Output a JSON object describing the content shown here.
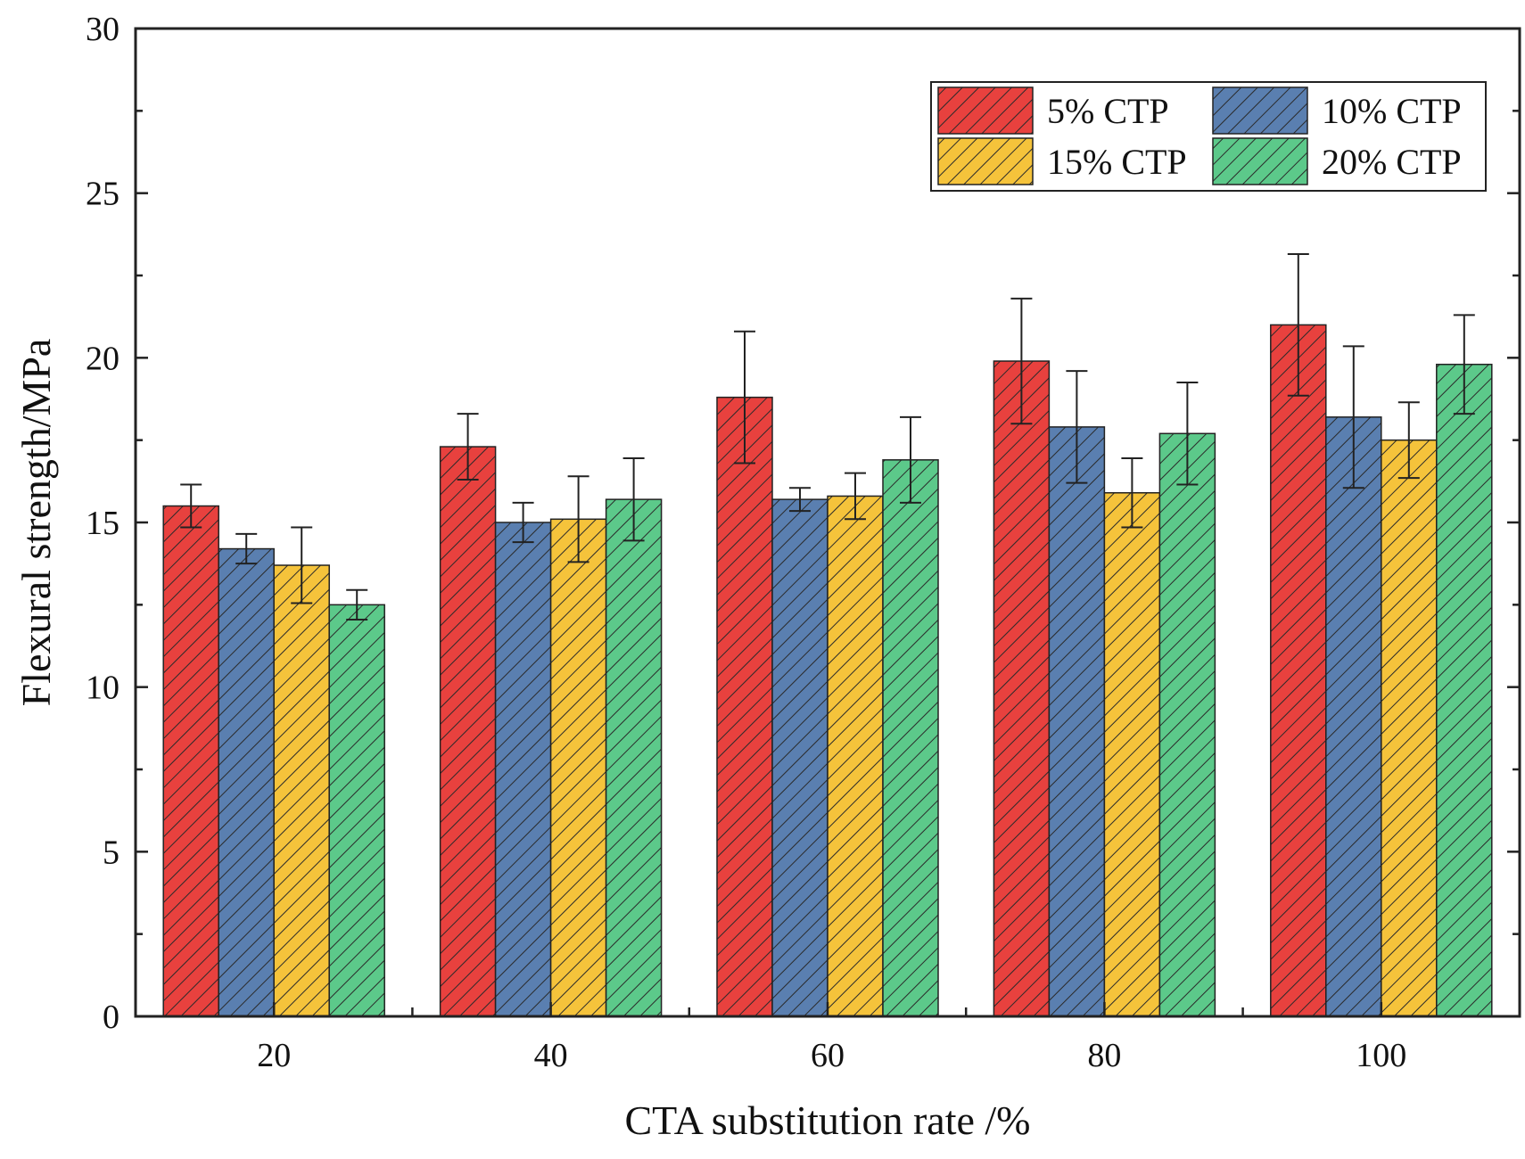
{
  "chart_data": {
    "type": "bar",
    "title": "",
    "xlabel": "CTA substitution rate /%",
    "ylabel": "Flexural strength/MPa",
    "ylim": [
      0,
      30
    ],
    "yticks": [
      0,
      5,
      10,
      15,
      20,
      25,
      30
    ],
    "categories": [
      "20",
      "40",
      "60",
      "80",
      "100"
    ],
    "series": [
      {
        "name": "5% CTP",
        "color": "#e8413e",
        "values": [
          15.5,
          17.3,
          18.8,
          19.9,
          21.0
        ],
        "errors": [
          0.65,
          1.0,
          2.0,
          1.9,
          2.15
        ]
      },
      {
        "name": "10% CTP",
        "color": "#5a7fb0",
        "values": [
          14.2,
          15.0,
          15.7,
          17.9,
          18.2
        ],
        "errors": [
          0.45,
          0.6,
          0.35,
          1.7,
          2.15
        ]
      },
      {
        "name": "15% CTP",
        "color": "#f5c33b",
        "values": [
          13.7,
          15.1,
          15.8,
          15.9,
          17.5
        ],
        "errors": [
          1.15,
          1.3,
          0.7,
          1.05,
          1.15
        ]
      },
      {
        "name": "20% CTP",
        "color": "#5cc98a",
        "values": [
          12.5,
          15.7,
          16.9,
          17.7,
          19.8
        ],
        "errors": [
          0.45,
          1.25,
          1.3,
          1.55,
          1.5
        ]
      }
    ],
    "legend_position": "top-right",
    "grid": false,
    "hatch": "diagonal"
  }
}
